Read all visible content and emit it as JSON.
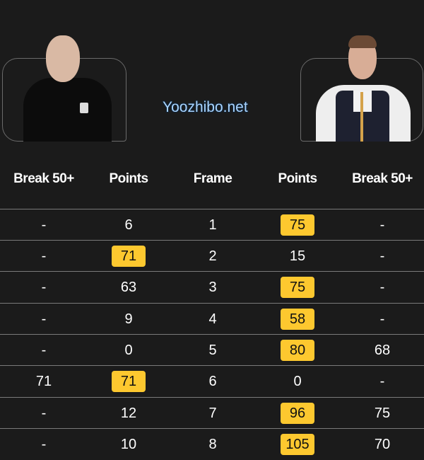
{
  "headers": {
    "left_break": "Break 50+",
    "left_points": "Points",
    "frame": "Frame",
    "right_points": "Points",
    "right_break": "Break 50+"
  },
  "highlight_color": "#fdc82f",
  "rows": [
    {
      "lb": "-",
      "lp": "6",
      "f": "1",
      "rp": "75",
      "rb": "-",
      "win": "right"
    },
    {
      "lb": "-",
      "lp": "71",
      "f": "2",
      "rp": "15",
      "rb": "-",
      "win": "left"
    },
    {
      "lb": "-",
      "lp": "63",
      "f": "3",
      "rp": "75",
      "rb": "-",
      "win": "right"
    },
    {
      "lb": "-",
      "lp": "9",
      "f": "4",
      "rp": "58",
      "rb": "-",
      "win": "right"
    },
    {
      "lb": "-",
      "lp": "0",
      "f": "5",
      "rp": "80",
      "rb": "68",
      "win": "right"
    },
    {
      "lb": "71",
      "lp": "71",
      "f": "6",
      "rp": "0",
      "rb": "-",
      "win": "left"
    },
    {
      "lb": "-",
      "lp": "12",
      "f": "7",
      "rp": "96",
      "rb": "75",
      "win": "right"
    },
    {
      "lb": "-",
      "lp": "10",
      "f": "8",
      "rp": "105",
      "rb": "70",
      "win": "right"
    }
  ],
  "watermark": "Yoozhibo.net"
}
